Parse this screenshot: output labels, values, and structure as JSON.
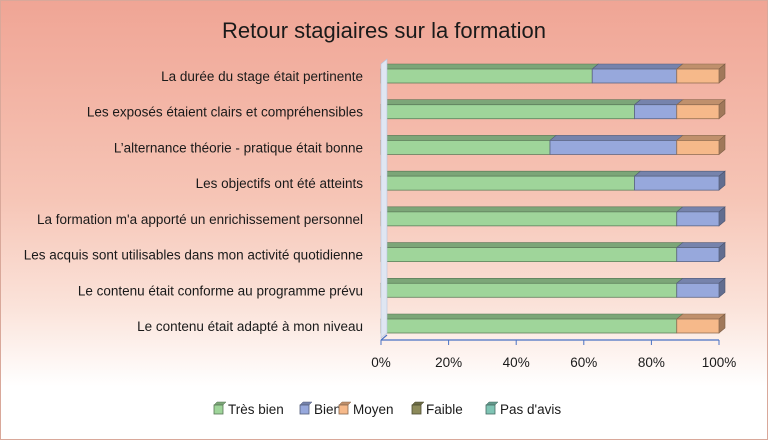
{
  "chart_data": {
    "type": "bar",
    "orientation": "horizontal",
    "stacked": "percent",
    "title": "Retour stagiaires sur la formation",
    "categories": [
      "La durée du stage était pertinente",
      "Les exposés étaient clairs et compréhensibles",
      "L’alternance théorie - pratique était bonne",
      "Les objectifs ont été atteints",
      "La formation m'a apporté un enrichissement personnel",
      "Les acquis sont utilisables dans mon activité quotidienne",
      "Le contenu était conforme au programme prévu",
      "Le contenu était adapté à mon niveau"
    ],
    "series": [
      {
        "name": "Très bien",
        "color": "#9fd59a",
        "values": [
          62.5,
          75,
          50,
          75,
          87.5,
          87.5,
          87.5,
          87.5
        ]
      },
      {
        "name": "Bien",
        "color": "#97a8dc",
        "values": [
          25,
          12.5,
          37.5,
          25,
          12.5,
          12.5,
          12.5,
          0
        ]
      },
      {
        "name": "Moyen",
        "color": "#f6b98a",
        "values": [
          12.5,
          12.5,
          12.5,
          0,
          0,
          0,
          0,
          12.5
        ]
      },
      {
        "name": "Faible",
        "color": "#8c8a5a",
        "values": [
          0,
          0,
          0,
          0,
          0,
          0,
          0,
          0
        ]
      },
      {
        "name": "Pas d'avis",
        "color": "#7fc4b4",
        "values": [
          0,
          0,
          0,
          0,
          0,
          0,
          0,
          0
        ]
      }
    ],
    "x_ticks": [
      "0%",
      "20%",
      "40%",
      "60%",
      "80%",
      "100%"
    ],
    "xlim": [
      0,
      100
    ],
    "legend_position": "bottom",
    "grid": false
  }
}
